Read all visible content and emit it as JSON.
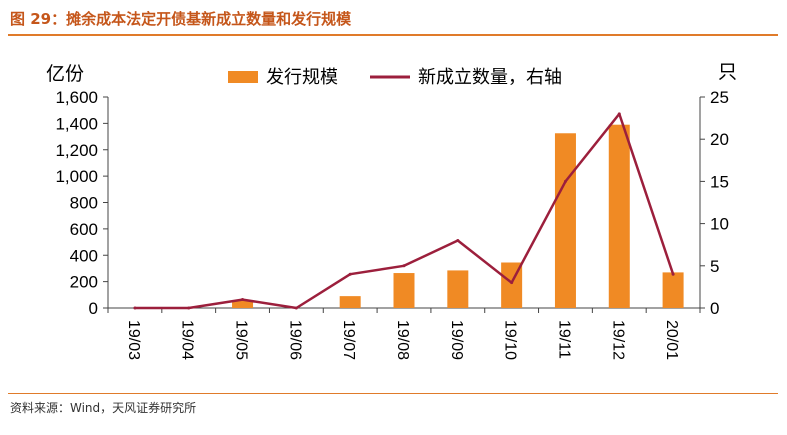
{
  "figure": {
    "title": "图 29：摊余成本法定开债基新成立数量和发行规模",
    "source": "资料来源：Wind，天风证券研究所"
  },
  "colors": {
    "bar": "#f08a24",
    "line": "#9c1f3c",
    "title": "#c5561a",
    "rule": "#e07b2a"
  },
  "chart_data": {
    "type": "bar",
    "categories": [
      "19/03",
      "19/04",
      "19/05",
      "19/06",
      "19/07",
      "19/08",
      "19/09",
      "19/10",
      "19/11",
      "19/12",
      "20/01"
    ],
    "series": [
      {
        "name": "发行规模",
        "type": "bar",
        "axis": "left",
        "values": [
          0,
          0,
          55,
          0,
          90,
          265,
          285,
          345,
          1325,
          1390,
          270
        ]
      },
      {
        "name": "新成立数量，右轴",
        "type": "line",
        "axis": "right",
        "values": [
          0,
          0,
          1,
          0,
          4,
          5,
          8,
          3,
          15,
          23,
          4
        ]
      }
    ],
    "left_axis": {
      "label": "亿份",
      "min": 0,
      "max": 1600,
      "ticks": [
        0,
        200,
        400,
        600,
        800,
        1000,
        1200,
        1400,
        1600
      ],
      "tick_labels": [
        "0",
        "200",
        "400",
        "600",
        "800",
        "1,000",
        "1,200",
        "1,400",
        "1,600"
      ]
    },
    "right_axis": {
      "label": "只",
      "min": 0,
      "max": 25,
      "ticks": [
        0,
        5,
        10,
        15,
        20,
        25
      ],
      "tick_labels": [
        "0",
        "5",
        "10",
        "15",
        "20",
        "25"
      ]
    },
    "legend": [
      "发行规模",
      "新成立数量，右轴"
    ]
  }
}
